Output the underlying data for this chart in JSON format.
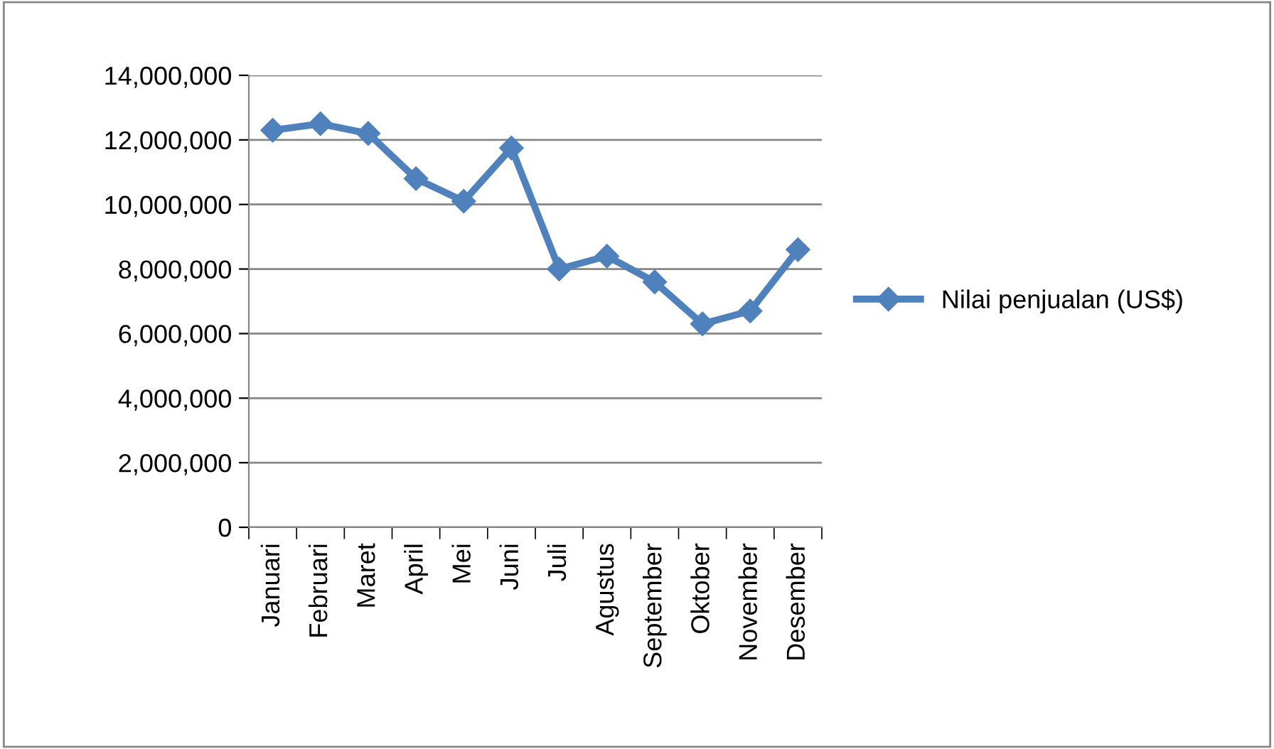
{
  "chart_data": {
    "type": "line",
    "categories": [
      "Januari",
      "Februari",
      "Maret",
      "April",
      "Mei",
      "Juni",
      "Juli",
      "Agustus",
      "September",
      "Oktober",
      "November",
      "Desember"
    ],
    "series": [
      {
        "name": "Nilai penjualan (US$)",
        "color": "#4f81bd",
        "values": [
          12300000,
          12500000,
          12200000,
          10800000,
          10100000,
          11750000,
          8000000,
          8400000,
          7600000,
          6300000,
          6700000,
          8600000
        ]
      }
    ],
    "ylim": [
      0,
      14000000
    ],
    "yticks": [
      {
        "value": 0,
        "label": "0"
      },
      {
        "value": 2000000,
        "label": "2,000,000"
      },
      {
        "value": 4000000,
        "label": "4,000,000"
      },
      {
        "value": 6000000,
        "label": "6,000,000"
      },
      {
        "value": 8000000,
        "label": "8,000,000"
      },
      {
        "value": 10000000,
        "label": "10,000,000"
      },
      {
        "value": 12000000,
        "label": "12,000,000"
      },
      {
        "value": 14000000,
        "label": "14,000,000"
      }
    ],
    "grid": "y",
    "legend": "right",
    "marker": "diamond",
    "line_style": "solid"
  }
}
